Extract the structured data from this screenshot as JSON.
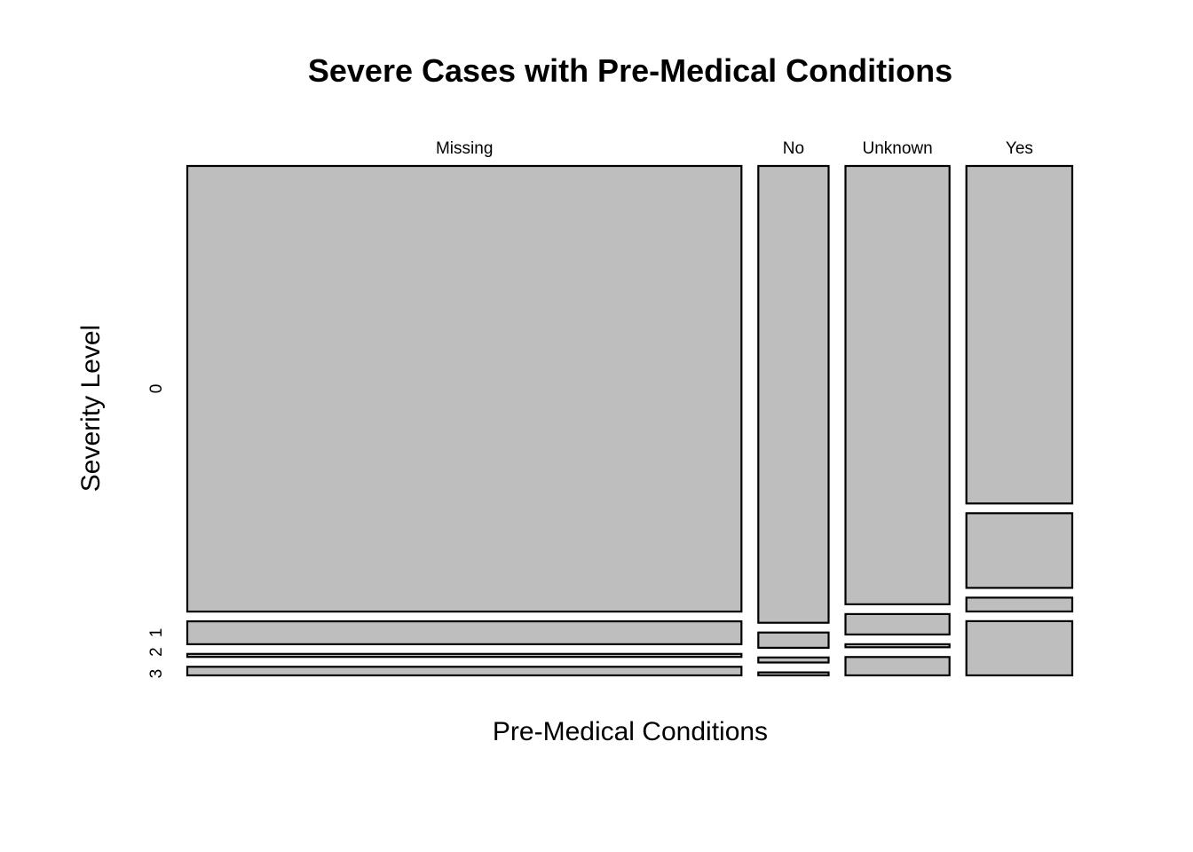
{
  "chart_data": {
    "type": "mosaic",
    "title": "Severe Cases with Pre-Medical Conditions",
    "xlabel": "Pre-Medical Conditions",
    "ylabel": "Severity Level",
    "fill_color": "#bebebe",
    "categories": [
      "Missing",
      "No",
      "Unknown",
      "Yes"
    ],
    "category_proportions": [
      0.623,
      0.079,
      0.117,
      0.119
    ],
    "severity_levels": [
      "0",
      "1",
      "2",
      "3"
    ],
    "conditional_proportions": {
      "Missing": [
        0.877,
        0.045,
        0.006,
        0.017
      ],
      "No": [
        0.9,
        0.03,
        0.01,
        0.006
      ],
      "Unknown": [
        0.86,
        0.04,
        0.006,
        0.036
      ],
      "Yes": [
        0.66,
        0.146,
        0.027,
        0.106
      ]
    },
    "y_tick_labels": [
      "0",
      "1",
      "2",
      "3"
    ]
  }
}
